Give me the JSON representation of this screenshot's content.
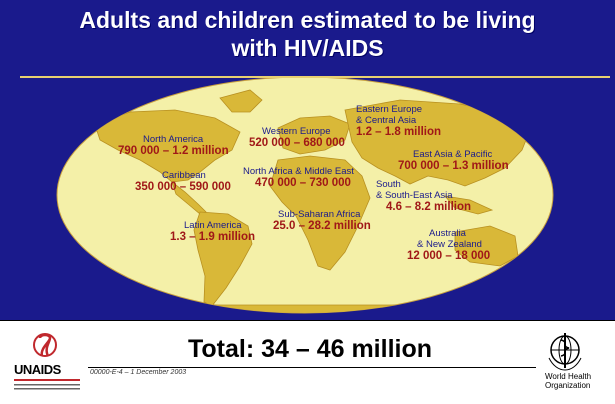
{
  "title": {
    "line1": "Adults and children estimated to be living",
    "line2": "with HIV/AIDS"
  },
  "regions": [
    {
      "name": "North America",
      "value": "790 000 – 1.2 million"
    },
    {
      "name": "Caribbean",
      "value": "350 000 – 590 000"
    },
    {
      "name": "Latin America",
      "value": "1.3 – 1.9 million"
    },
    {
      "name": "Western Europe",
      "value": "520 000 – 680 000"
    },
    {
      "name": "North Africa & Middle East",
      "value": "470 000 – 730 000"
    },
    {
      "name": "Sub-Saharan Africa",
      "value": "25.0 – 28.2 million"
    },
    {
      "name": "Eastern Europe",
      "name2": "& Central Asia",
      "value": "1.2 – 1.8 million"
    },
    {
      "name": "East Asia & Pacific",
      "value": "700 000 – 1.3 million"
    },
    {
      "name": "South",
      "name2": "& South-East Asia",
      "value": "4.6 – 8.2 million"
    },
    {
      "name": "Australia",
      "name2": "& New Zealand",
      "value": "12 000 – 18 000"
    }
  ],
  "total": "Total: 34 – 46 million",
  "footer_text": "00000-E-4 – 1 December 2003",
  "logos": {
    "unaids": "UNAIDS",
    "who_line1": "World Health",
    "who_line2": "Organization"
  },
  "colors": {
    "background": "#1a1a8c",
    "ocean": "#f4f0a8",
    "land": "#d9b838",
    "value_text": "#a01818",
    "region_text": "#1a1a8c"
  }
}
